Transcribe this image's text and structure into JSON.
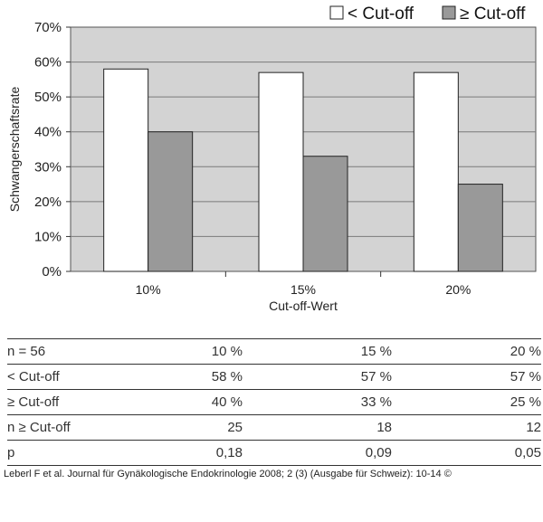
{
  "chart_data": {
    "type": "bar",
    "title": "",
    "xlabel": "Cut-off-Wert",
    "ylabel": "Schwangerschaftsrate",
    "categories": [
      "10%",
      "15%",
      "20%"
    ],
    "ylim": [
      0,
      70
    ],
    "yticks": [
      "0%",
      "10%",
      "20%",
      "30%",
      "40%",
      "50%",
      "60%",
      "70%"
    ],
    "ytick_values": [
      0,
      10,
      20,
      30,
      40,
      50,
      60,
      70
    ],
    "grid": true,
    "legend_position": "top-right",
    "series": [
      {
        "name": "< Cut-off",
        "values": [
          58,
          57,
          57
        ],
        "color": "#ffffff"
      },
      {
        "name": "≥ Cut-off",
        "values": [
          40,
          33,
          25
        ],
        "color": "#999999"
      }
    ],
    "plot_background": "#d3d3d3"
  },
  "table": {
    "rows": [
      {
        "label": "n = 56",
        "cells": [
          "10 %",
          "15 %",
          "20 %"
        ]
      },
      {
        "label": "< Cut-off",
        "cells": [
          "58 %",
          "57 %",
          "57 %"
        ]
      },
      {
        "label": "≥ Cut-off",
        "cells": [
          "40 %",
          "33 %",
          "25 %"
        ]
      },
      {
        "label": "n ≥ Cut-off",
        "cells": [
          "25",
          "18",
          "12"
        ]
      },
      {
        "label": "p",
        "cells": [
          "0,18",
          "0,09",
          "0,05"
        ]
      }
    ]
  },
  "source": "Leberl F et al. Journal für Gynäkologische Endokrinologie 2008; 2 (3) (Ausgabe für Schweiz): 10-14 ©"
}
